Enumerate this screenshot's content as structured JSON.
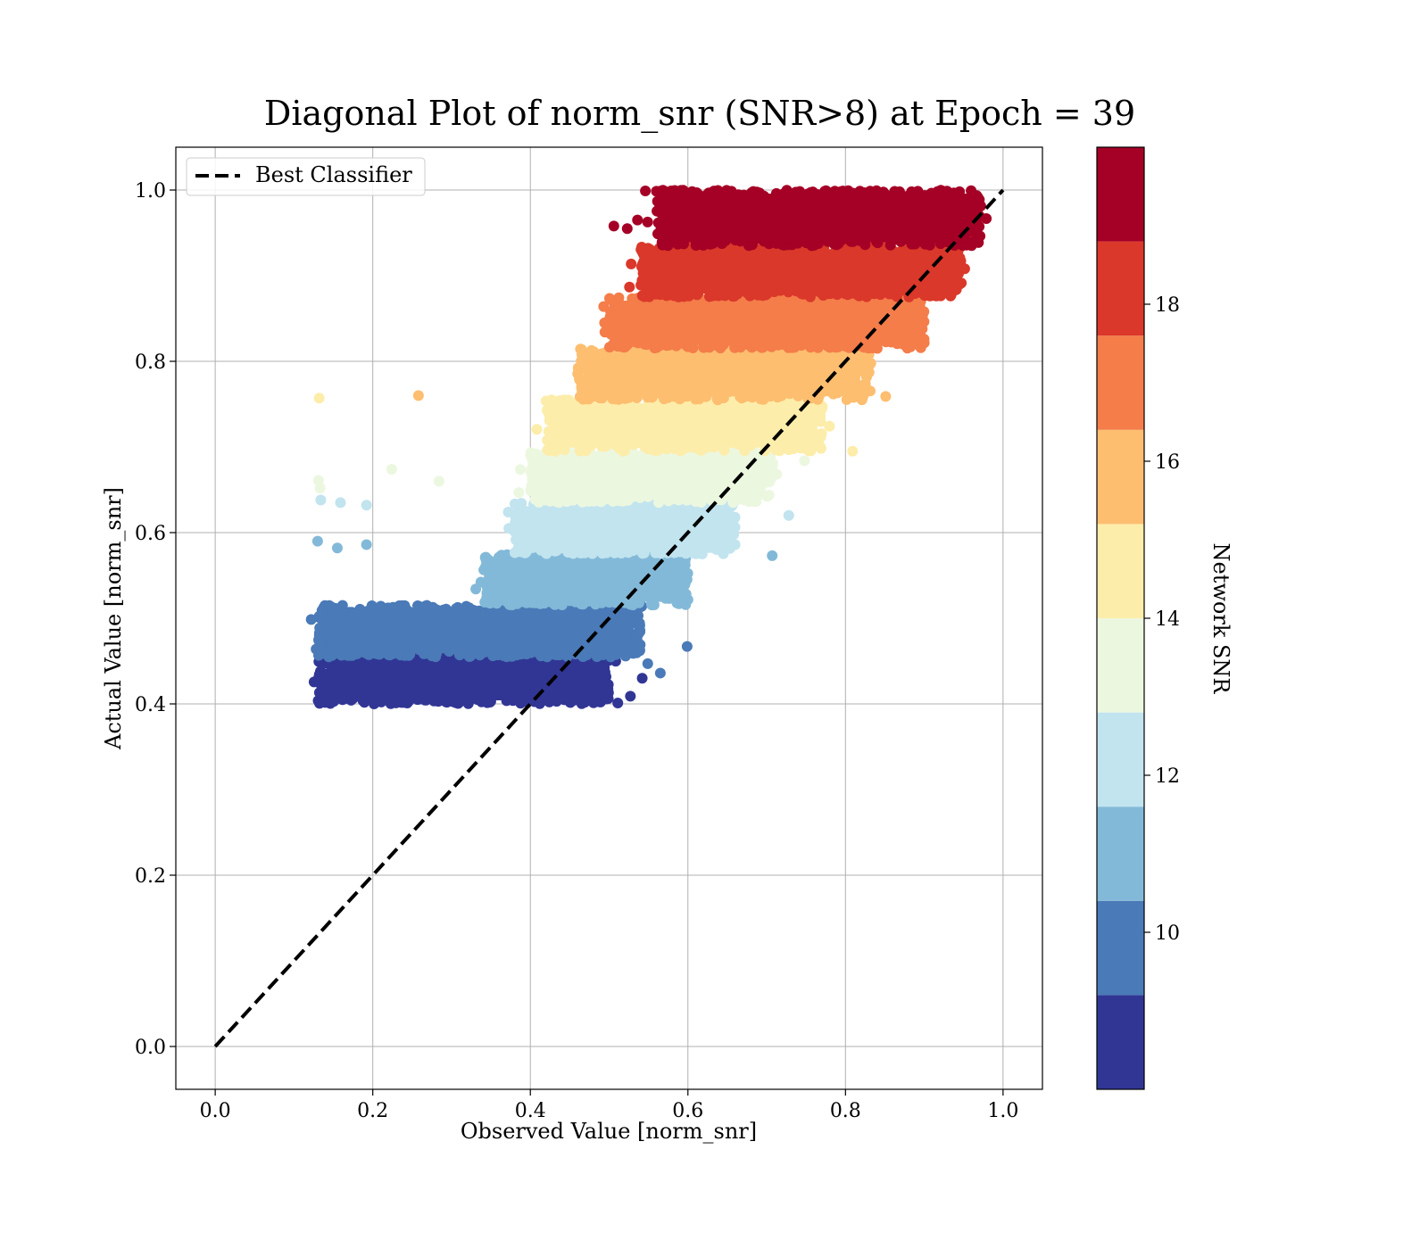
{
  "chart_data": {
    "type": "scatter",
    "title": "Diagonal Plot of norm_snr (SNR>8) at Epoch = 39",
    "xlabel": "Observed Value [norm_snr]",
    "ylabel": "Actual Value [norm_snr]",
    "xlim": [
      -0.05,
      1.05
    ],
    "ylim": [
      -0.05,
      1.05
    ],
    "x_ticks": [
      "0.0",
      "0.2",
      "0.4",
      "0.6",
      "0.8",
      "1.0"
    ],
    "y_ticks": [
      "0.0",
      "0.2",
      "0.4",
      "0.6",
      "0.8",
      "1.0"
    ],
    "grid": true,
    "legend": {
      "placement": "upper-left",
      "entries": [
        "Best Classifier"
      ]
    },
    "reference_line": {
      "name": "Best Classifier",
      "style": "dashed",
      "color": "#000000",
      "x": [
        0,
        1
      ],
      "y": [
        0,
        1
      ]
    },
    "colorbar": {
      "label": "Network SNR",
      "range": [
        8,
        20
      ],
      "ticks": [
        "10",
        "12",
        "14",
        "16",
        "18"
      ],
      "tick_values": [
        10,
        12,
        14,
        16,
        18
      ],
      "bins": [
        {
          "from": 8.0,
          "to": 9.2,
          "color": "#313695"
        },
        {
          "from": 9.2,
          "to": 10.4,
          "color": "#4a7ab7"
        },
        {
          "from": 10.4,
          "to": 11.6,
          "color": "#83b9d8"
        },
        {
          "from": 11.6,
          "to": 12.8,
          "color": "#c1e4ef"
        },
        {
          "from": 12.8,
          "to": 14.0,
          "color": "#ecf7e0"
        },
        {
          "from": 14.0,
          "to": 15.2,
          "color": "#fdedaa"
        },
        {
          "from": 15.2,
          "to": 16.4,
          "color": "#fdbe70"
        },
        {
          "from": 16.4,
          "to": 17.6,
          "color": "#f47d4a"
        },
        {
          "from": 17.6,
          "to": 18.8,
          "color": "#da382a"
        },
        {
          "from": 18.8,
          "to": 20.0,
          "color": "#a50026"
        }
      ]
    },
    "point_bands": [
      {
        "color": "#313695",
        "y": [
          0.4,
          0.455
        ],
        "x": [
          0.13,
          0.5
        ]
      },
      {
        "color": "#4a7ab7",
        "y": [
          0.455,
          0.515
        ],
        "x": [
          0.13,
          0.54
        ]
      },
      {
        "color": "#83b9d8",
        "y": [
          0.515,
          0.575
        ],
        "x": [
          0.34,
          0.6
        ]
      },
      {
        "color": "#c1e4ef",
        "y": [
          0.575,
          0.635
        ],
        "x": [
          0.38,
          0.66
        ]
      },
      {
        "color": "#ecf7e0",
        "y": [
          0.635,
          0.695
        ],
        "x": [
          0.4,
          0.71
        ]
      },
      {
        "color": "#fdedaa",
        "y": [
          0.695,
          0.755
        ],
        "x": [
          0.42,
          0.77
        ]
      },
      {
        "color": "#fdbe70",
        "y": [
          0.755,
          0.815
        ],
        "x": [
          0.46,
          0.83
        ]
      },
      {
        "color": "#f47d4a",
        "y": [
          0.815,
          0.875
        ],
        "x": [
          0.5,
          0.9
        ]
      },
      {
        "color": "#da382a",
        "y": [
          0.875,
          0.935
        ],
        "x": [
          0.54,
          0.95
        ]
      },
      {
        "color": "#a50026",
        "y": [
          0.935,
          1.0
        ],
        "x": [
          0.56,
          0.97
        ]
      }
    ],
    "outliers": [
      {
        "x": 0.132,
        "y": 0.757,
        "color": "#fdedaa"
      },
      {
        "x": 0.258,
        "y": 0.76,
        "color": "#fdbe70"
      },
      {
        "x": 0.131,
        "y": 0.661,
        "color": "#ecf7e0"
      },
      {
        "x": 0.133,
        "y": 0.652,
        "color": "#ecf7e0"
      },
      {
        "x": 0.224,
        "y": 0.674,
        "color": "#ecf7e0"
      },
      {
        "x": 0.284,
        "y": 0.66,
        "color": "#ecf7e0"
      },
      {
        "x": 0.134,
        "y": 0.638,
        "color": "#c1e4ef"
      },
      {
        "x": 0.159,
        "y": 0.635,
        "color": "#c1e4ef"
      },
      {
        "x": 0.192,
        "y": 0.632,
        "color": "#c1e4ef"
      },
      {
        "x": 0.13,
        "y": 0.59,
        "color": "#83b9d8"
      },
      {
        "x": 0.192,
        "y": 0.586,
        "color": "#83b9d8"
      },
      {
        "x": 0.155,
        "y": 0.582,
        "color": "#83b9d8"
      },
      {
        "x": 0.565,
        "y": 0.436,
        "color": "#4a7ab7"
      },
      {
        "x": 0.549,
        "y": 0.447,
        "color": "#4a7ab7"
      },
      {
        "x": 0.599,
        "y": 0.467,
        "color": "#4a7ab7"
      },
      {
        "x": 0.527,
        "y": 0.409,
        "color": "#313695"
      },
      {
        "x": 0.511,
        "y": 0.401,
        "color": "#313695"
      },
      {
        "x": 0.542,
        "y": 0.43,
        "color": "#313695"
      },
      {
        "x": 0.707,
        "y": 0.573,
        "color": "#83b9d8"
      },
      {
        "x": 0.728,
        "y": 0.62,
        "color": "#c1e4ef"
      },
      {
        "x": 0.748,
        "y": 0.684,
        "color": "#ecf7e0"
      },
      {
        "x": 0.809,
        "y": 0.695,
        "color": "#fdedaa"
      },
      {
        "x": 0.851,
        "y": 0.759,
        "color": "#fdbe70"
      },
      {
        "x": 0.879,
        "y": 0.821,
        "color": "#f47d4a"
      },
      {
        "x": 0.889,
        "y": 0.857,
        "color": "#f47d4a"
      },
      {
        "x": 0.506,
        "y": 0.958,
        "color": "#a50026"
      },
      {
        "x": 0.523,
        "y": 0.955,
        "color": "#a50026"
      },
      {
        "x": 0.546,
        "y": 0.999,
        "color": "#a50026"
      },
      {
        "x": 0.536,
        "y": 0.965,
        "color": "#a50026"
      }
    ]
  }
}
